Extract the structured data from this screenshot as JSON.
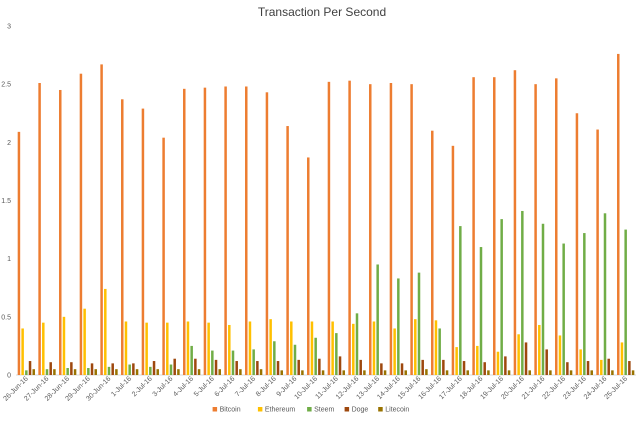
{
  "chart_data": {
    "type": "bar",
    "title": "Transaction Per Second",
    "xlabel": "",
    "ylabel": "",
    "ylim": [
      0,
      3
    ],
    "yticks": [
      "0",
      "0.5",
      "1",
      "1.5",
      "2",
      "2.5",
      "3"
    ],
    "grid": false,
    "legend_position": "bottom",
    "categories": [
      "26-Jun-16",
      "27-Jun-16",
      "28-Jun-16",
      "29-Jun-16",
      "30-Jun-16",
      "1-Jul-16",
      "2-Jul-16",
      "3-Jul-16",
      "4-Jul-16",
      "5-Jul-16",
      "6-Jul-16",
      "7-Jul-16",
      "8-Jul-16",
      "9-Jul-16",
      "10-Jul-16",
      "11-Jul-16",
      "12-Jul-16",
      "13-Jul-16",
      "14-Jul-16",
      "15-Jul-16",
      "16-Jul-16",
      "17-Jul-16",
      "18-Jul-16",
      "19-Jul-16",
      "20-Jul-16",
      "21-Jul-16",
      "22-Jul-16",
      "23-Jul-16",
      "24-Jul-16",
      "25-Jul-16"
    ],
    "series": [
      {
        "name": "Bitcoin",
        "color": "#ED7D31",
        "values": [
          2.09,
          2.51,
          2.45,
          2.59,
          2.67,
          2.37,
          2.29,
          2.04,
          2.46,
          2.47,
          2.48,
          2.48,
          2.43,
          2.14,
          1.87,
          2.52,
          2.53,
          2.5,
          2.51,
          2.5,
          2.1,
          1.97,
          2.56,
          2.56,
          2.62,
          2.5,
          2.55,
          2.25,
          2.11,
          2.76
        ]
      },
      {
        "name": "Ethereum",
        "color": "#FFC000",
        "values": [
          0.4,
          0.45,
          0.5,
          0.57,
          0.74,
          0.46,
          0.45,
          0.45,
          0.46,
          0.45,
          0.43,
          0.46,
          0.48,
          0.46,
          0.46,
          0.46,
          0.44,
          0.46,
          0.4,
          0.48,
          0.47,
          0.24,
          0.25,
          0.2,
          0.35,
          0.43,
          0.34,
          0.22,
          0.13,
          0.28
        ]
      },
      {
        "name": "Steem",
        "color": "#70AD47",
        "values": [
          0.04,
          0.05,
          0.06,
          0.06,
          0.07,
          0.09,
          0.07,
          0.09,
          0.25,
          0.21,
          0.21,
          0.22,
          0.29,
          0.26,
          0.32,
          0.36,
          0.53,
          0.95,
          0.83,
          0.88,
          0.4,
          1.28,
          1.1,
          1.34,
          1.41,
          1.3,
          1.13,
          1.22,
          1.39,
          1.25
        ]
      },
      {
        "name": "Doge",
        "color": "#9E480E",
        "values": [
          0.12,
          0.11,
          0.11,
          0.1,
          0.1,
          0.1,
          0.12,
          0.14,
          0.14,
          0.13,
          0.12,
          0.12,
          0.12,
          0.13,
          0.14,
          0.16,
          0.13,
          0.1,
          0.1,
          0.13,
          0.13,
          0.12,
          0.11,
          0.16,
          0.28,
          0.22,
          0.11,
          0.12,
          0.14,
          0.12
        ]
      },
      {
        "name": "Litecoin",
        "color": "#997300",
        "values": [
          0.05,
          0.05,
          0.05,
          0.05,
          0.05,
          0.05,
          0.05,
          0.05,
          0.05,
          0.05,
          0.05,
          0.05,
          0.04,
          0.04,
          0.04,
          0.04,
          0.04,
          0.04,
          0.04,
          0.05,
          0.04,
          0.04,
          0.04,
          0.04,
          0.04,
          0.04,
          0.04,
          0.04,
          0.04,
          0.04
        ]
      }
    ]
  }
}
